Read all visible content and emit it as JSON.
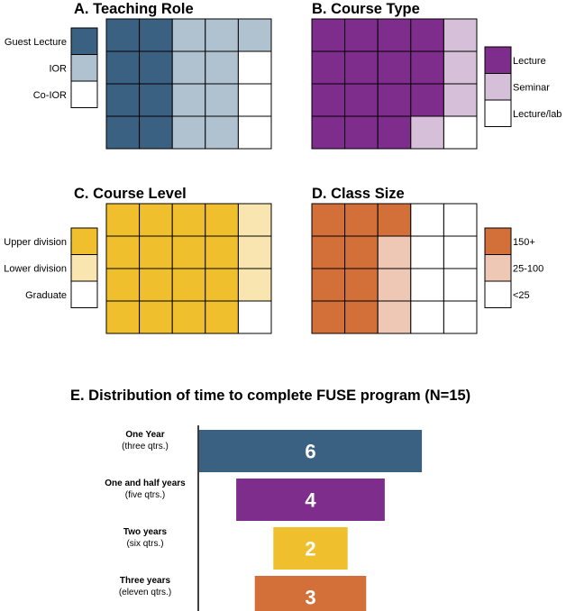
{
  "chart_data": [
    {
      "type": "waffle",
      "title": "A. Teaching Role",
      "grid": {
        "rows": 4,
        "cols": 5
      },
      "legend_position": "left",
      "legend": [
        "Guest Lecture",
        "IOR",
        "Co-IOR"
      ],
      "colors": [
        "#3b6182",
        "#b0c1d0",
        "#ffffff"
      ],
      "cells": [
        [
          0,
          0,
          1,
          1,
          1
        ],
        [
          0,
          0,
          1,
          1,
          2
        ],
        [
          0,
          0,
          1,
          1,
          2
        ],
        [
          0,
          0,
          1,
          1,
          2
        ]
      ]
    },
    {
      "type": "waffle",
      "title": "B. Course Type",
      "grid": {
        "rows": 4,
        "cols": 5
      },
      "legend_position": "right",
      "legend": [
        "Lecture",
        "Seminar",
        "Lecture/lab"
      ],
      "colors": [
        "#7f2d8c",
        "#d6c0d9",
        "#ffffff"
      ],
      "cells": [
        [
          0,
          0,
          0,
          0,
          1
        ],
        [
          0,
          0,
          0,
          0,
          1
        ],
        [
          0,
          0,
          0,
          0,
          1
        ],
        [
          0,
          0,
          0,
          1,
          2
        ]
      ]
    },
    {
      "type": "waffle",
      "title": "C. Course Level",
      "grid": {
        "rows": 4,
        "cols": 5
      },
      "legend_position": "left",
      "legend": [
        "Upper division",
        "Lower division",
        "Graduate"
      ],
      "colors": [
        "#f0bf2e",
        "#f8e5b0",
        "#ffffff"
      ],
      "cells": [
        [
          0,
          0,
          0,
          0,
          1
        ],
        [
          0,
          0,
          0,
          0,
          1
        ],
        [
          0,
          0,
          0,
          0,
          1
        ],
        [
          0,
          0,
          0,
          0,
          2
        ]
      ]
    },
    {
      "type": "waffle",
      "title": "D. Class Size",
      "grid": {
        "rows": 4,
        "cols": 5
      },
      "legend_position": "right",
      "legend": [
        "150+",
        "25-100",
        "<25"
      ],
      "colors": [
        "#d3703a",
        "#efc7b5",
        "#ffffff"
      ],
      "cells": [
        [
          0,
          0,
          0,
          2,
          2
        ],
        [
          0,
          0,
          1,
          2,
          2
        ],
        [
          0,
          0,
          1,
          2,
          2
        ],
        [
          0,
          0,
          1,
          2,
          2
        ]
      ]
    },
    {
      "type": "bar",
      "orientation": "horizontal-centered",
      "title": "E. Distribution of time to complete FUSE program (N=15)",
      "categories": [
        {
          "label": "One Year",
          "sub": "(three qtrs.)"
        },
        {
          "label": "One and half years",
          "sub": "(five qtrs.)"
        },
        {
          "label": "Two years",
          "sub": "(six qtrs.)"
        },
        {
          "label": "Three years",
          "sub": "(eleven qtrs.)"
        }
      ],
      "values": [
        6,
        4,
        2,
        3
      ],
      "colors": [
        "#3b6182",
        "#7f2d8c",
        "#f0bf2e",
        "#d3703a"
      ]
    }
  ]
}
